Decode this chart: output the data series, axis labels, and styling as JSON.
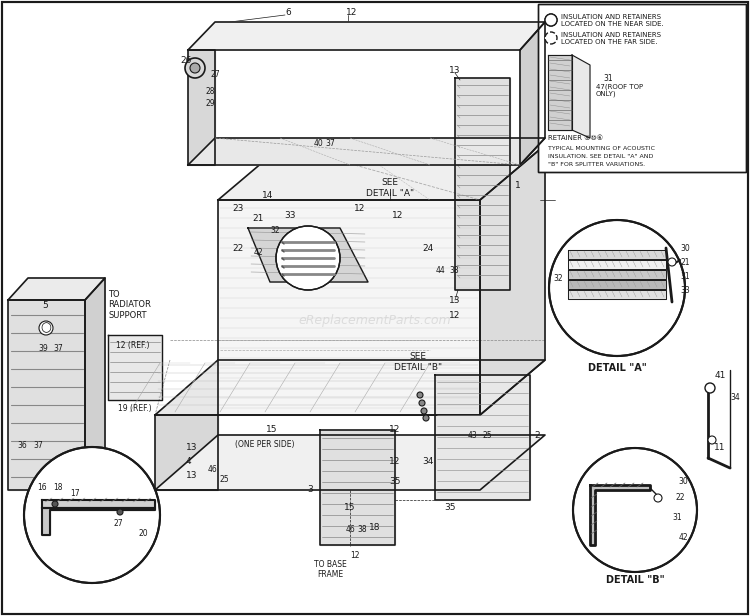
{
  "bg_color": "#ffffff",
  "line_color": "#1a1a1a",
  "watermark": "eReplacementParts.com",
  "detail_a_label": "DETAIL \"A\"",
  "detail_b_label": "DETAIL \"B\"",
  "see_detail_a": "SEE\nDETAIL \"A\"",
  "see_detail_b": "SEE\nDETAIL \"B\"",
  "radiator_text": "TO\nRADIATOR\nSUPPORT",
  "ref12": "12 (REF.)",
  "ref19": "19 (REF.)",
  "one_per_side": "(ONE PER SIDE)",
  "to_base_frame": "TO BASE\nFRAME"
}
